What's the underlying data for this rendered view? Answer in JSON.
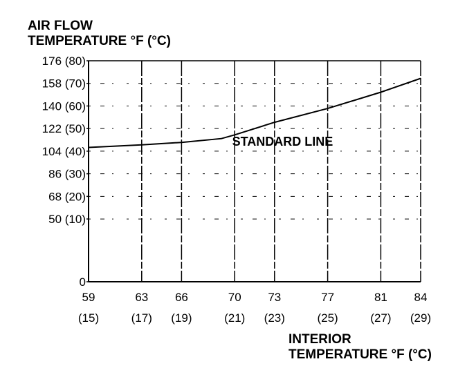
{
  "chart_data": {
    "type": "line",
    "ylabel": [
      "AIR FLOW",
      "TEMPERATURE °F (°C)"
    ],
    "xlabel": [
      "INTERIOR",
      "TEMPERATURE °F (°C)"
    ],
    "x_ticks": [
      {
        "value": 59,
        "label": "59",
        "sublabel": "(15)"
      },
      {
        "value": 63,
        "label": "63",
        "sublabel": "(17)"
      },
      {
        "value": 66,
        "label": "66",
        "sublabel": "(19)"
      },
      {
        "value": 70,
        "label": "70",
        "sublabel": "(21)"
      },
      {
        "value": 73,
        "label": "73",
        "sublabel": "(23)"
      },
      {
        "value": 77,
        "label": "77",
        "sublabel": "(25)"
      },
      {
        "value": 81,
        "label": "81",
        "sublabel": "(27)"
      },
      {
        "value": 84,
        "label": "84",
        "sublabel": "(29)"
      }
    ],
    "y_ticks": [
      {
        "value": 0,
        "label": "0"
      },
      {
        "value": 50,
        "label": "50 (10)"
      },
      {
        "value": 68,
        "label": "68 (20)"
      },
      {
        "value": 86,
        "label": "86 (30)"
      },
      {
        "value": 104,
        "label": "104 (40)"
      },
      {
        "value": 122,
        "label": "122 (50)"
      },
      {
        "value": 140,
        "label": "140 (60)"
      },
      {
        "value": 158,
        "label": "158 (70)"
      },
      {
        "value": 176,
        "label": "176 (80)"
      }
    ],
    "xlim": [
      59,
      84
    ],
    "ylim": [
      0,
      176
    ],
    "series": [
      {
        "name": "STANDARD LINE",
        "x": [
          59,
          63,
          66,
          69,
          70,
          73,
          77,
          81,
          84
        ],
        "y": [
          107,
          109,
          111,
          114,
          117,
          127,
          138,
          151,
          162
        ]
      }
    ],
    "annotations": [
      {
        "text": "STANDARD LINE",
        "x": 74.5,
        "y": 111
      }
    ],
    "grid": true,
    "line_color": "#000000"
  }
}
